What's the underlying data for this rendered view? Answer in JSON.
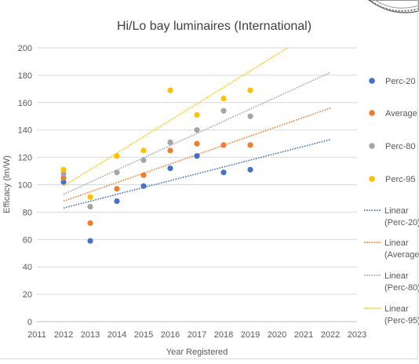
{
  "chart_data": {
    "type": "scatter",
    "title": "Hi/Lo bay luminaires (International)",
    "xlabel": "Year Registered",
    "ylabel": "Efficacy (lm/W)",
    "xlim": [
      2011,
      2023
    ],
    "ylim": [
      0,
      200
    ],
    "x_ticks": [
      2011,
      2012,
      2013,
      2014,
      2015,
      2016,
      2017,
      2018,
      2019,
      2020,
      2021,
      2022,
      2023
    ],
    "y_ticks": [
      0,
      20,
      40,
      60,
      80,
      100,
      120,
      140,
      160,
      180,
      200
    ],
    "grid": "horizontal",
    "legend_position": "right",
    "series": [
      {
        "name": "Perc-20",
        "color": "#4472c4",
        "x": [
          2012,
          2013,
          2014,
          2015,
          2016,
          2017,
          2018,
          2019
        ],
        "y": [
          102,
          59,
          88,
          99,
          112,
          121,
          109,
          111
        ],
        "trend": {
          "name": "Linear (Perc-20)",
          "x": [
            2012,
            2022
          ],
          "y": [
            83,
            133
          ]
        }
      },
      {
        "name": "Average",
        "color": "#ed7d31",
        "x": [
          2012,
          2013,
          2014,
          2015,
          2016,
          2017,
          2018,
          2019
        ],
        "y": [
          105,
          72,
          97,
          107,
          125,
          130,
          129,
          129
        ],
        "trend": {
          "name": "Linear (Average)",
          "x": [
            2012,
            2022
          ],
          "y": [
            88,
            156
          ]
        }
      },
      {
        "name": "Perc-80",
        "color": "#a5a5a5",
        "x": [
          2012,
          2013,
          2014,
          2015,
          2016,
          2017,
          2018,
          2019
        ],
        "y": [
          108,
          84,
          109,
          118,
          131,
          140,
          154,
          150
        ],
        "trend": {
          "name": "Linear (Perc-80)",
          "x": [
            2012,
            2022
          ],
          "y": [
            93,
            182
          ]
        }
      },
      {
        "name": "Perc-95",
        "color": "#ffc000",
        "x": [
          2012,
          2013,
          2014,
          2015,
          2016,
          2017,
          2018,
          2019
        ],
        "y": [
          111,
          91,
          121,
          125,
          169,
          151,
          163,
          169
        ],
        "trend": {
          "name": "Linear (Perc-95)",
          "x": [
            2012,
            2020.4
          ],
          "y": [
            99,
            200
          ]
        }
      }
    ]
  },
  "colors": {
    "axis": "#bfbfbf",
    "grid": "#d9d9d9",
    "text": "#595959",
    "title": "#404040"
  }
}
